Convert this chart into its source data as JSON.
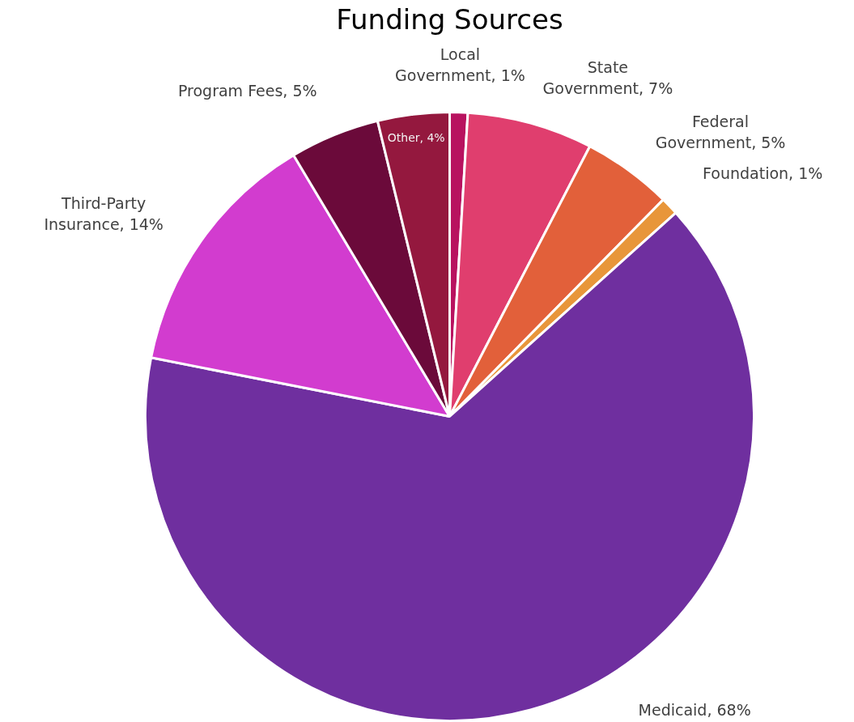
{
  "chart_data": {
    "type": "pie",
    "title": "Funding Sources",
    "categories": [
      "Local Government",
      "State Government",
      "Federal Government",
      "Foundation",
      "Medicaid",
      "Third-Party Insurance",
      "Program Fees",
      "Other"
    ],
    "values": [
      1,
      7,
      5,
      1,
      68,
      14,
      5,
      4
    ],
    "value_labels": [
      "1%",
      "7%",
      "5%",
      "1%",
      "68%",
      "14%",
      "5%",
      "4%"
    ],
    "colors": [
      "#b8125f",
      "#e03e6e",
      "#e2603a",
      "#e8963a",
      "#6f2f9f",
      "#d23ccf",
      "#6b0a3a",
      "#94183e"
    ],
    "legend": false
  }
}
